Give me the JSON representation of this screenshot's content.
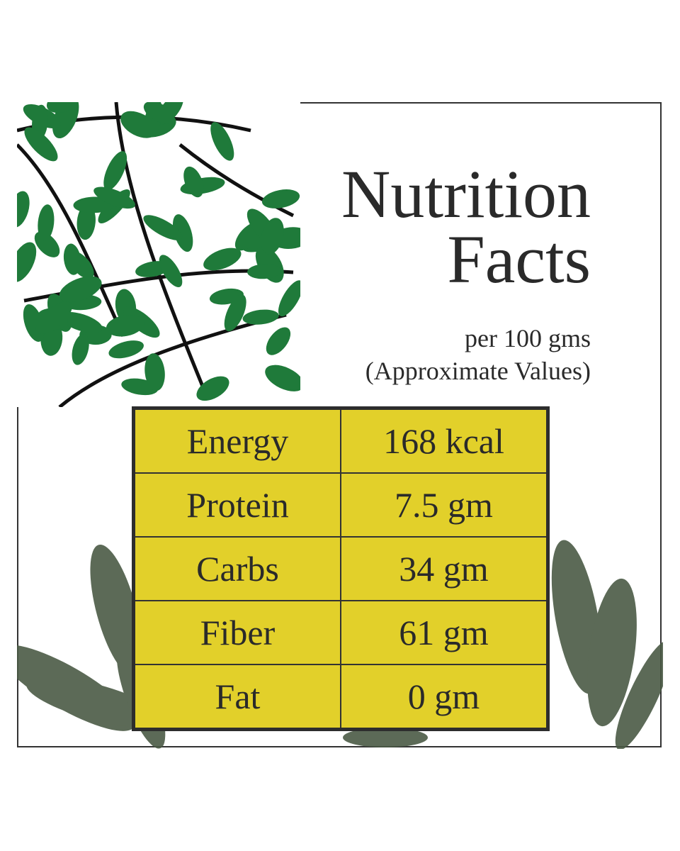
{
  "title": {
    "line1": "Nutrition",
    "line2": "Facts"
  },
  "subtitle": {
    "line1": "per 100 gms",
    "line2": "(Approximate Values)"
  },
  "colors": {
    "table_bg": "#e2d02a",
    "leaf_green": "#1f7a3a",
    "leaf_dark": "#4a5a44",
    "border": "#333333"
  },
  "nutrients": [
    {
      "name": "Energy",
      "value": "168 kcal"
    },
    {
      "name": "Protein",
      "value": "7.5 gm"
    },
    {
      "name": "Carbs",
      "value": "34 gm"
    },
    {
      "name": "Fiber",
      "value": "61 gm"
    },
    {
      "name": "Fat",
      "value": "0 gm"
    }
  ]
}
